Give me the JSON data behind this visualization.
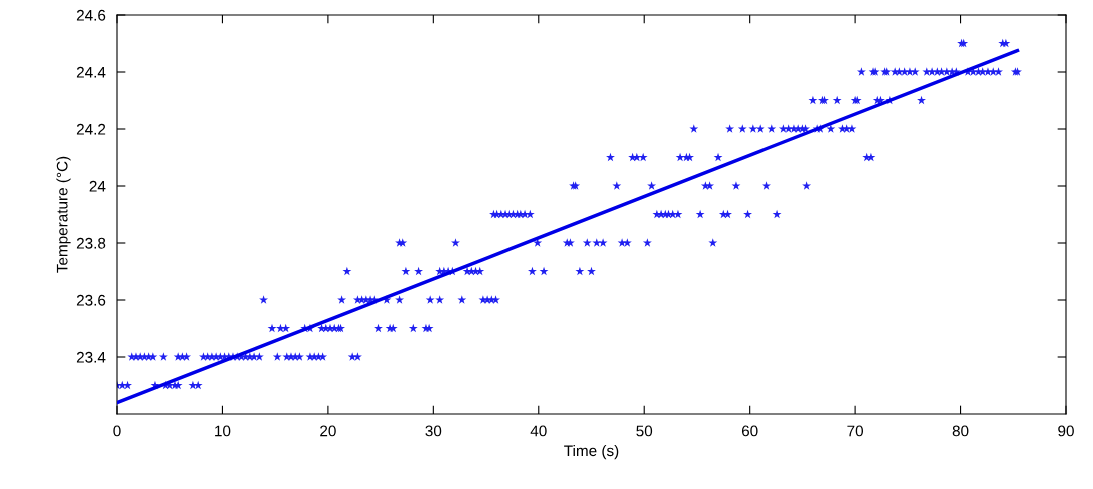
{
  "chart_data": {
    "type": "scatter",
    "xlabel": "Time (s)",
    "ylabel": "Temperature (°C)",
    "xlim": [
      0,
      90
    ],
    "ylim": [
      23.2,
      24.6
    ],
    "xticks": [
      0,
      10,
      20,
      30,
      40,
      50,
      60,
      70,
      80,
      90
    ],
    "yticks": [
      23.4,
      23.6,
      23.8,
      24,
      24.2,
      24.4,
      24.6
    ],
    "grid": false,
    "series": [
      {
        "marker": "star",
        "color": "#2020f0",
        "x": [
          0,
          0.5,
          1.0,
          3.6,
          4.6,
          5.0,
          5.5,
          5.8,
          7.2,
          7.7,
          1.4,
          1.8,
          2.2,
          2.6,
          3.0,
          3.4,
          4.4,
          5.8,
          6.2,
          6.6,
          8.2,
          8.6,
          9.0,
          9.4,
          9.8,
          10.2,
          10.6,
          11.0,
          11.4,
          11.8,
          12.2,
          12.6,
          13.0,
          13.5,
          15.2,
          16.1,
          16.5,
          16.9,
          17.3,
          18.3,
          18.7,
          19.1,
          19.5,
          22.3,
          22.8,
          14.7,
          15.5,
          16.0,
          17.8,
          18.3,
          19.4,
          19.8,
          20.2,
          20.6,
          21.0,
          21.2,
          24.8,
          25.9,
          26.2,
          28.1,
          29.3,
          29.6,
          13.9,
          21.3,
          22.8,
          23.2,
          23.6,
          24.0,
          24.4,
          25.6,
          26.8,
          29.7,
          30.6,
          32.7,
          34.7,
          35.1,
          35.5,
          35.9,
          21.8,
          27.4,
          28.6,
          30.6,
          31.0,
          31.4,
          31.8,
          33.2,
          33.6,
          34.0,
          34.4,
          39.4,
          40.5,
          43.9,
          45.0,
          26.8,
          27.1,
          32.1,
          39.9,
          42.7,
          43.0,
          44.6,
          45.5,
          46.1,
          47.9,
          48.4,
          50.3,
          56.5,
          35.7,
          36.0,
          36.4,
          36.8,
          37.2,
          37.6,
          38.0,
          38.3,
          38.7,
          39.2,
          51.2,
          51.6,
          52.0,
          52.3,
          52.7,
          53.2,
          55.3,
          57.5,
          57.9,
          59.8,
          62.6,
          43.3,
          43.5,
          47.4,
          50.7,
          55.8,
          56.2,
          58.7,
          61.6,
          65.4,
          46.8,
          48.9,
          49.3,
          49.9,
          53.4,
          54.0,
          54.3,
          57.0,
          71.1,
          71.5,
          54.7,
          58.1,
          59.3,
          60.3,
          61.0,
          62.1,
          63.2,
          63.7,
          64.2,
          64.6,
          65.0,
          65.3,
          66.4,
          66.7,
          67.7,
          68.8,
          69.2,
          69.7,
          66.0,
          66.9,
          67.1,
          68.3,
          70.0,
          70.2,
          72.1,
          72.4,
          73.3,
          76.3,
          70.6,
          71.7,
          71.9,
          72.8,
          73.0,
          73.8,
          74.2,
          74.7,
          75.2,
          75.7,
          76.8,
          77.3,
          77.8,
          78.2,
          78.7,
          79.2,
          79.6,
          80.7,
          81.2,
          81.7,
          82.1,
          82.6,
          83.1,
          83.6,
          85.2,
          85.4,
          80.1,
          80.3,
          84.0,
          84.3
        ],
        "values": [
          23.3,
          23.3,
          23.3,
          23.3,
          23.3,
          23.3,
          23.3,
          23.3,
          23.3,
          23.3,
          23.4,
          23.4,
          23.4,
          23.4,
          23.4,
          23.4,
          23.4,
          23.4,
          23.4,
          23.4,
          23.4,
          23.4,
          23.4,
          23.4,
          23.4,
          23.4,
          23.4,
          23.4,
          23.4,
          23.4,
          23.4,
          23.4,
          23.4,
          23.4,
          23.4,
          23.4,
          23.4,
          23.4,
          23.4,
          23.4,
          23.4,
          23.4,
          23.4,
          23.4,
          23.4,
          23.5,
          23.5,
          23.5,
          23.5,
          23.5,
          23.5,
          23.5,
          23.5,
          23.5,
          23.5,
          23.5,
          23.5,
          23.5,
          23.5,
          23.5,
          23.5,
          23.5,
          23.6,
          23.6,
          23.6,
          23.6,
          23.6,
          23.6,
          23.6,
          23.6,
          23.6,
          23.6,
          23.6,
          23.6,
          23.6,
          23.6,
          23.6,
          23.6,
          23.7,
          23.7,
          23.7,
          23.7,
          23.7,
          23.7,
          23.7,
          23.7,
          23.7,
          23.7,
          23.7,
          23.7,
          23.7,
          23.7,
          23.7,
          23.8,
          23.8,
          23.8,
          23.8,
          23.8,
          23.8,
          23.8,
          23.8,
          23.8,
          23.8,
          23.8,
          23.8,
          23.8,
          23.9,
          23.9,
          23.9,
          23.9,
          23.9,
          23.9,
          23.9,
          23.9,
          23.9,
          23.9,
          23.9,
          23.9,
          23.9,
          23.9,
          23.9,
          23.9,
          23.9,
          23.9,
          23.9,
          23.9,
          23.9,
          24.0,
          24.0,
          24.0,
          24.0,
          24.0,
          24.0,
          24.0,
          24.0,
          24.0,
          24.1,
          24.1,
          24.1,
          24.1,
          24.1,
          24.1,
          24.1,
          24.1,
          24.1,
          24.1,
          24.2,
          24.2,
          24.2,
          24.2,
          24.2,
          24.2,
          24.2,
          24.2,
          24.2,
          24.2,
          24.2,
          24.2,
          24.2,
          24.2,
          24.2,
          24.2,
          24.2,
          24.2,
          24.3,
          24.3,
          24.3,
          24.3,
          24.3,
          24.3,
          24.3,
          24.3,
          24.3,
          24.3,
          24.4,
          24.4,
          24.4,
          24.4,
          24.4,
          24.4,
          24.4,
          24.4,
          24.4,
          24.4,
          24.4,
          24.4,
          24.4,
          24.4,
          24.4,
          24.4,
          24.4,
          24.4,
          24.4,
          24.4,
          24.4,
          24.4,
          24.4,
          24.4,
          24.4,
          24.4,
          24.5,
          24.5,
          24.5,
          24.5
        ]
      },
      {
        "type": "line",
        "marker": "none",
        "color": "#0000e6",
        "x": [
          0,
          85.4
        ],
        "values": [
          23.24,
          24.475
        ]
      }
    ]
  }
}
